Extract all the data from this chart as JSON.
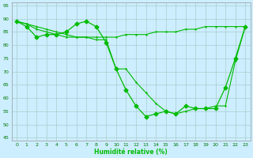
{
  "xlabel": "Humidité relative (%)",
  "xlim": [
    -0.5,
    23.5
  ],
  "ylim": [
    44,
    96
  ],
  "yticks": [
    45,
    50,
    55,
    60,
    65,
    70,
    75,
    80,
    85,
    90,
    95
  ],
  "xticks": [
    0,
    1,
    2,
    3,
    4,
    5,
    6,
    7,
    8,
    9,
    10,
    11,
    12,
    13,
    14,
    15,
    16,
    17,
    18,
    19,
    20,
    21,
    22,
    23
  ],
  "bg_color": "#cceeff",
  "grid_color": "#aacccc",
  "line_color": "#00bb00",
  "line1": [
    89,
    87,
    83,
    84,
    84,
    85,
    88,
    89,
    87,
    81,
    71,
    63,
    57,
    53,
    54,
    55,
    54,
    57,
    56,
    56,
    56,
    64,
    75,
    87
  ],
  "line2": [
    89,
    88,
    86,
    85,
    84,
    83,
    83,
    83,
    82,
    82,
    71,
    71,
    66,
    62,
    58,
    55,
    54,
    55,
    56,
    56,
    57,
    57,
    74,
    87
  ],
  "line3": [
    89,
    88,
    87,
    86,
    85,
    84,
    83,
    83,
    83,
    83,
    83,
    84,
    84,
    84,
    85,
    85,
    85,
    86,
    86,
    87,
    87,
    87,
    87,
    87
  ]
}
